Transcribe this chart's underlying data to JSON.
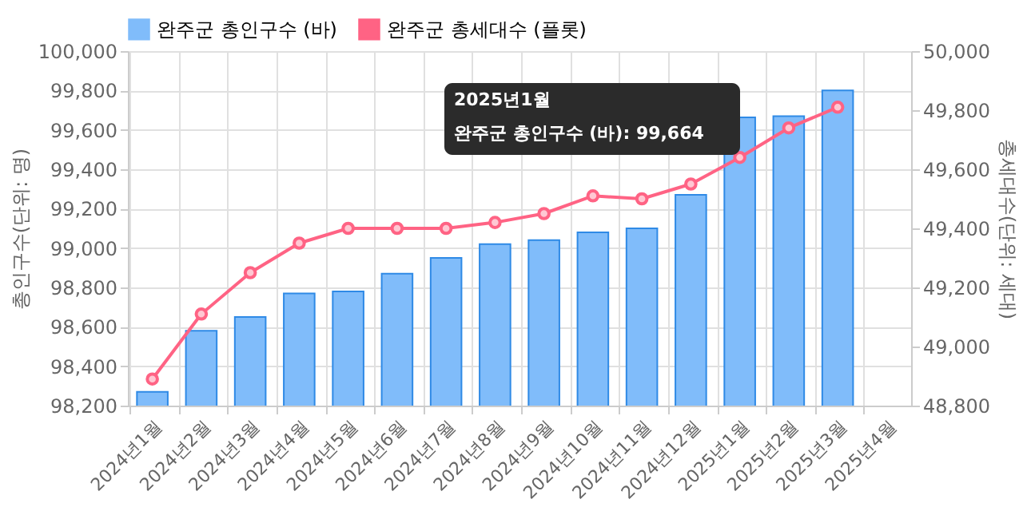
{
  "chart_data": {
    "type": "bar",
    "categories": [
      "2024년1월",
      "2024년2월",
      "2024년3월",
      "2024년4월",
      "2024년5월",
      "2024년6월",
      "2024년7월",
      "2024년8월",
      "2024년9월",
      "2024년10월",
      "2024년11월",
      "2024년12월",
      "2025년1월",
      "2025년2월",
      "2025년3월",
      "2025년4월"
    ],
    "series": [
      {
        "name": "완주군 총인구수 (바)",
        "color": "#80bcfa",
        "values": [
          98270,
          98580,
          98650,
          98770,
          98780,
          98870,
          98950,
          99020,
          99040,
          99080,
          99100,
          99270,
          99664,
          99670,
          99800,
          null
        ]
      },
      {
        "name": "완주군 총세대수 (플롯)",
        "type": "line",
        "axis": "y2",
        "color": "#ff6384",
        "marker": "circle",
        "line_style": "solid",
        "values": [
          48890,
          49110,
          49250,
          49350,
          49400,
          49400,
          49400,
          49420,
          49450,
          49510,
          49500,
          49550,
          49640,
          49740,
          49810,
          null
        ]
      }
    ],
    "ylabel": "총인구수(단위: 명)",
    "y2label": "총세대수(단위: 세대)",
    "ylim": [
      98200,
      100000
    ],
    "yticks": [
      {
        "value": 98200,
        "label": "98,200"
      },
      {
        "value": 98400,
        "label": "98,400"
      },
      {
        "value": 98600,
        "label": "98,600"
      },
      {
        "value": 98800,
        "label": "98,800"
      },
      {
        "value": 99000,
        "label": "99,000"
      },
      {
        "value": 99200,
        "label": "99,200"
      },
      {
        "value": 99400,
        "label": "99,400"
      },
      {
        "value": 99600,
        "label": "99,600"
      },
      {
        "value": 99800,
        "label": "99,800"
      },
      {
        "value": 100000,
        "label": "100,000"
      }
    ],
    "y2lim": [
      48800,
      50000
    ],
    "y2ticks": [
      {
        "value": 48800,
        "label": "48,800"
      },
      {
        "value": 49000,
        "label": "49,000"
      },
      {
        "value": 49200,
        "label": "49,200"
      },
      {
        "value": 49400,
        "label": "49,400"
      },
      {
        "value": 49600,
        "label": "49,600"
      },
      {
        "value": 49800,
        "label": "49,800"
      },
      {
        "value": 50000,
        "label": "50,000"
      }
    ],
    "grid": true,
    "legend": "top",
    "annotations": [
      "2025년1월",
      "완주군 총인구수 (바): 99,664"
    ]
  }
}
